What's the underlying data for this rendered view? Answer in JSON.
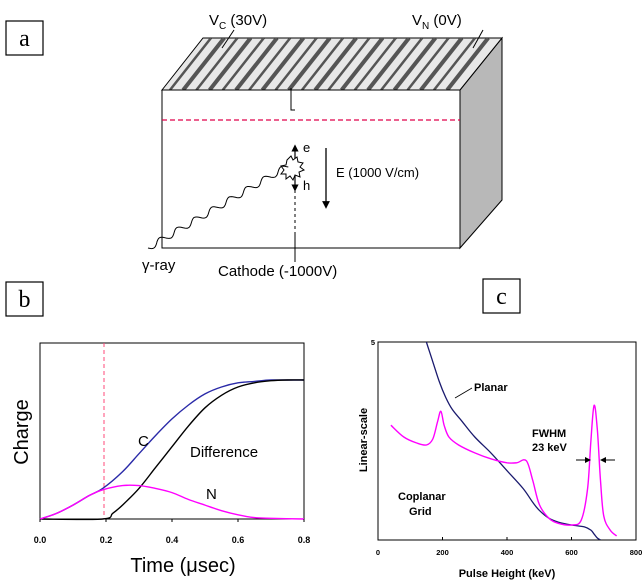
{
  "panel_a": {
    "letter": "a",
    "vc_main": "V",
    "vc_sub": "C",
    "vc_rest": " (30V)",
    "vn_main": "V",
    "vn_sub": "N",
    "vn_rest": " (0V)",
    "electron": "e",
    "hole": "h",
    "field": "E (1000 V/cm)",
    "gamma": "γ-ray",
    "cathode": "Cathode (-1000V)"
  },
  "panel_b": {
    "letter": "b",
    "y_title": "Charge",
    "x_title_pre": "Time (",
    "x_title_mu": "μ",
    "x_title_post": "sec)",
    "label_c": "C",
    "label_diff": "Difference",
    "label_n": "N"
  },
  "panel_c": {
    "letter": "c",
    "y_title": "Linear-scale",
    "x_title": "Pulse Height (keV)",
    "label_planar": "Planar",
    "label_coplanar_1": "Coplanar",
    "label_coplanar_2": "Grid",
    "label_fwhm_1": "FWHM",
    "label_fwhm_2": "23 keV"
  },
  "colors": {
    "blue": "#2a2aa8",
    "magenta": "#ff00ff",
    "dark_navy": "#1a1a6e",
    "dashed_red": "#e0004a"
  },
  "chart_data": [
    {
      "id": "b",
      "type": "line",
      "xlabel": "Time (μsec)",
      "ylabel": "Charge",
      "xlim": [
        0.0,
        0.8
      ],
      "xticks": [
        "0.0",
        "0.2",
        "0.4",
        "0.6",
        "0.8"
      ],
      "ylim": [
        0,
        1
      ],
      "marker_line_x": 0.19,
      "series": [
        {
          "name": "C",
          "color": "#2a2aa8",
          "x": [
            0.0,
            0.05,
            0.1,
            0.15,
            0.19,
            0.25,
            0.3,
            0.35,
            0.4,
            0.45,
            0.5,
            0.55,
            0.6,
            0.65,
            0.7,
            0.75,
            0.8
          ],
          "y": [
            0.0,
            0.04,
            0.1,
            0.17,
            0.22,
            0.34,
            0.47,
            0.6,
            0.72,
            0.82,
            0.9,
            0.95,
            0.98,
            0.99,
            1.0,
            1.0,
            1.0
          ]
        },
        {
          "name": "Difference",
          "color": "#000000",
          "x": [
            0.0,
            0.19,
            0.22,
            0.25,
            0.3,
            0.35,
            0.4,
            0.45,
            0.5,
            0.55,
            0.6,
            0.65,
            0.7,
            0.75,
            0.8
          ],
          "y": [
            0.0,
            0.0,
            0.04,
            0.1,
            0.22,
            0.37,
            0.52,
            0.67,
            0.8,
            0.89,
            0.95,
            0.98,
            0.995,
            1.0,
            1.0
          ]
        },
        {
          "name": "N",
          "color": "#ff00ff",
          "x": [
            0.0,
            0.05,
            0.1,
            0.15,
            0.19,
            0.25,
            0.3,
            0.35,
            0.4,
            0.45,
            0.5,
            0.55,
            0.6,
            0.65,
            0.7,
            0.8
          ],
          "y": [
            0.0,
            0.04,
            0.1,
            0.17,
            0.21,
            0.24,
            0.24,
            0.22,
            0.19,
            0.14,
            0.1,
            0.06,
            0.03,
            0.01,
            0.005,
            0.0
          ]
        }
      ]
    },
    {
      "id": "c",
      "type": "line",
      "xlabel": "Pulse Height (keV)",
      "ylabel": "Linear-scale",
      "xlim": [
        0,
        800
      ],
      "xticks": [
        "0",
        "200",
        "400",
        "600",
        "800"
      ],
      "ylim": [
        0,
        5
      ],
      "yticks": [
        "5"
      ],
      "series": [
        {
          "name": "Planar",
          "color": "#1a1a6e",
          "x": [
            150,
            170,
            190,
            210,
            230,
            260,
            300,
            350,
            400,
            450,
            480,
            500,
            530,
            560,
            600,
            640,
            660,
            670,
            680,
            690
          ],
          "y": [
            5.0,
            4.5,
            4.0,
            3.6,
            3.3,
            3.0,
            2.6,
            2.2,
            1.75,
            1.3,
            0.95,
            0.75,
            0.55,
            0.45,
            0.38,
            0.33,
            0.25,
            0.15,
            0.05,
            0.0
          ]
        },
        {
          "name": "Coplanar Grid",
          "color": "#ff00ff",
          "x": [
            40,
            80,
            120,
            150,
            170,
            185,
            195,
            205,
            220,
            250,
            300,
            350,
            400,
            430,
            460,
            480,
            500,
            530,
            560,
            600,
            630,
            650,
            660,
            670,
            680,
            690,
            700,
            720,
            740
          ],
          "y": [
            2.9,
            2.6,
            2.45,
            2.4,
            2.55,
            3.0,
            3.25,
            2.9,
            2.6,
            2.4,
            2.2,
            2.05,
            1.95,
            1.95,
            2.0,
            1.5,
            0.9,
            0.55,
            0.42,
            0.38,
            0.5,
            1.3,
            2.5,
            3.4,
            2.8,
            1.5,
            0.6,
            0.25,
            0.1
          ]
        }
      ],
      "annotations": [
        "FWHM",
        "23 keV"
      ]
    }
  ]
}
